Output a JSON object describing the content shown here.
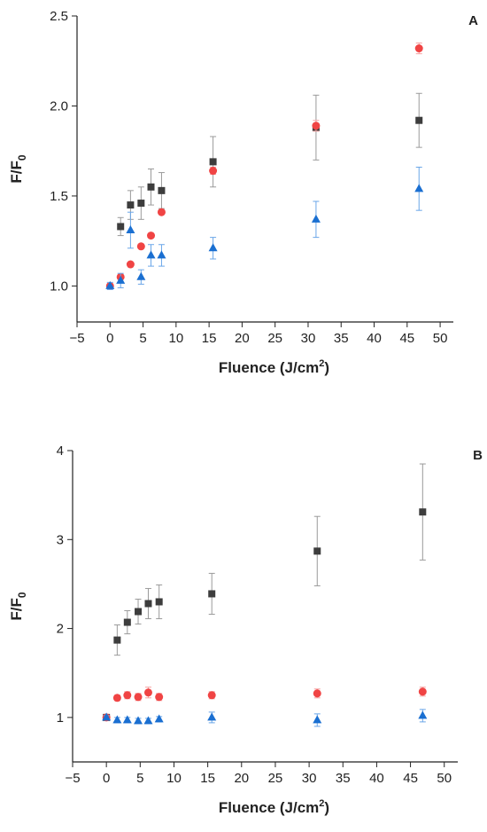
{
  "chart_data": [
    {
      "type": "scatter",
      "panel_label": "A",
      "xlabel": "Fluence (J/cm",
      "xlabel_sup": "2",
      "xlabel_end": ")",
      "ylabel": "F/F",
      "ylabel_sub": "0",
      "xlim": [
        -5,
        52
      ],
      "ylim": [
        0.8,
        2.5
      ],
      "xticks": [
        -5,
        0,
        5,
        10,
        15,
        20,
        25,
        30,
        35,
        40,
        45,
        50
      ],
      "yticks": [
        1.0,
        1.5,
        2.0,
        2.5
      ],
      "ytick_labels": [
        "1.0",
        "1.5",
        "2.0",
        "2.5"
      ],
      "grid": false,
      "series": [
        {
          "marker": "square",
          "color": "#3d3d3d",
          "errcolor": "#9a9a9a",
          "x": [
            1.6,
            3.1,
            4.7,
            6.2,
            7.8,
            15.6,
            31.2,
            46.8
          ],
          "y": [
            1.33,
            1.45,
            1.46,
            1.55,
            1.53,
            1.69,
            1.88,
            1.92
          ],
          "err": [
            0.05,
            0.08,
            0.09,
            0.1,
            0.1,
            0.14,
            0.18,
            0.15
          ]
        },
        {
          "marker": "circle",
          "color": "#f04444",
          "errcolor": "#f6a0a0",
          "x": [
            0,
            1.6,
            3.1,
            4.7,
            6.2,
            7.8,
            15.6,
            31.2,
            46.8
          ],
          "y": [
            1.0,
            1.05,
            1.12,
            1.22,
            1.28,
            1.41,
            1.64,
            1.89,
            2.32
          ],
          "err": [
            0.01,
            0.01,
            0.01,
            0.01,
            0.01,
            0.01,
            0.02,
            0.03,
            0.03
          ]
        },
        {
          "marker": "triangle",
          "color": "#1a6fd1",
          "errcolor": "#6aa6e8",
          "x": [
            0,
            1.6,
            3.1,
            4.7,
            6.2,
            7.8,
            15.6,
            31.2,
            46.8
          ],
          "y": [
            1.0,
            1.03,
            1.31,
            1.05,
            1.17,
            1.17,
            1.21,
            1.37,
            1.54
          ],
          "err": [
            0.02,
            0.04,
            0.1,
            0.04,
            0.06,
            0.06,
            0.06,
            0.1,
            0.12
          ]
        }
      ]
    },
    {
      "type": "scatter",
      "panel_label": "B",
      "xlabel": "Fluence (J/cm",
      "xlabel_sup": "2",
      "xlabel_end": ")",
      "ylabel": "F/F",
      "ylabel_sub": "0",
      "xlim": [
        -5,
        52
      ],
      "ylim": [
        0.5,
        4.0
      ],
      "xticks": [
        -5,
        0,
        5,
        10,
        15,
        20,
        25,
        30,
        35,
        40,
        45,
        50
      ],
      "yticks": [
        1,
        2,
        3,
        4
      ],
      "ytick_labels": [
        "1",
        "2",
        "3",
        "4"
      ],
      "grid": false,
      "series": [
        {
          "marker": "square",
          "color": "#3d3d3d",
          "errcolor": "#9a9a9a",
          "x": [
            0,
            1.6,
            3.1,
            4.7,
            6.2,
            7.8,
            15.6,
            31.2,
            46.8
          ],
          "y": [
            1.0,
            1.87,
            2.07,
            2.19,
            2.28,
            2.3,
            2.39,
            2.87,
            3.31
          ],
          "err": [
            0.02,
            0.17,
            0.13,
            0.14,
            0.17,
            0.19,
            0.23,
            0.39,
            0.54
          ]
        },
        {
          "marker": "circle",
          "color": "#f04444",
          "errcolor": "#f6a0a0",
          "x": [
            0,
            1.6,
            3.1,
            4.7,
            6.2,
            7.8,
            15.6,
            31.2,
            46.8
          ],
          "y": [
            1.0,
            1.22,
            1.25,
            1.23,
            1.28,
            1.23,
            1.25,
            1.27,
            1.29
          ],
          "err": [
            0.02,
            0.03,
            0.04,
            0.04,
            0.06,
            0.04,
            0.04,
            0.05,
            0.05
          ]
        },
        {
          "marker": "triangle",
          "color": "#1a6fd1",
          "errcolor": "#6aa6e8",
          "x": [
            0,
            1.6,
            3.1,
            4.7,
            6.2,
            7.8,
            15.6,
            31.2,
            46.8
          ],
          "y": [
            1.0,
            0.97,
            0.97,
            0.96,
            0.96,
            0.98,
            1.0,
            0.97,
            1.02
          ],
          "err": [
            0.02,
            0.03,
            0.03,
            0.03,
            0.03,
            0.03,
            0.06,
            0.07,
            0.07
          ]
        }
      ]
    }
  ]
}
